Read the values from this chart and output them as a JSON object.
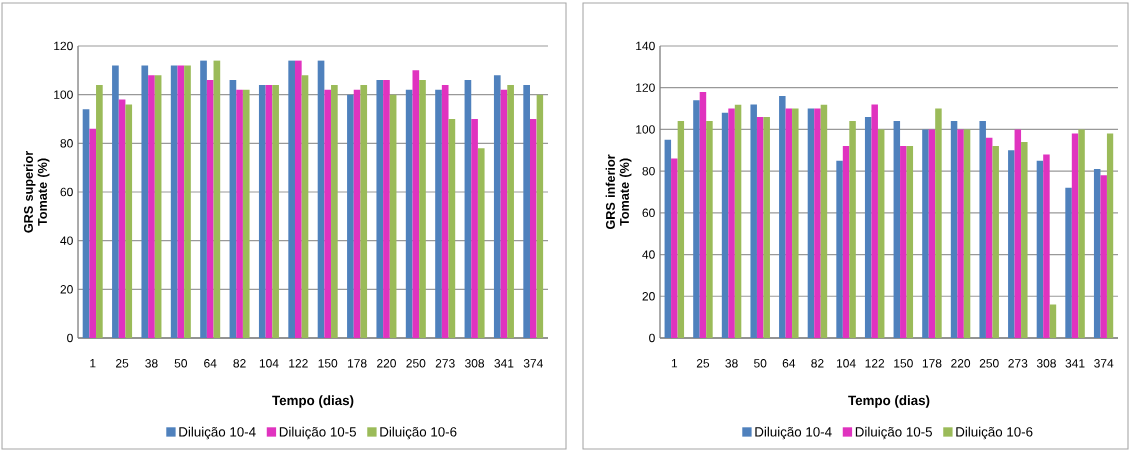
{
  "chart_data": [
    {
      "type": "bar",
      "xlabel": "Tempo (dias)",
      "ylabel": "GRS superior Tomate (%)",
      "categories": [
        "1",
        "25",
        "38",
        "50",
        "64",
        "82",
        "104",
        "122",
        "150",
        "178",
        "220",
        "250",
        "273",
        "308",
        "341",
        "374"
      ],
      "ylim": [
        0,
        120
      ],
      "yticks": [
        0,
        20,
        40,
        60,
        80,
        100,
        120
      ],
      "grid": "y",
      "legend": "bottom",
      "series": [
        {
          "name": "Diluição 10-4",
          "color": "#4f81bd",
          "values": [
            94,
            112,
            112,
            112,
            114,
            106,
            104,
            114,
            114,
            100,
            106,
            102,
            102,
            106,
            108,
            104
          ]
        },
        {
          "name": "Diluição 10-5",
          "color": "#e033bf",
          "values": [
            86,
            98,
            108,
            112,
            106,
            102,
            104,
            114,
            102,
            102,
            106,
            110,
            104,
            90,
            102,
            90
          ]
        },
        {
          "name": "Diluição 10-6",
          "color": "#9bbb59",
          "values": [
            104,
            96,
            108,
            112,
            114,
            102,
            104,
            108,
            104,
            104,
            100,
            106,
            90,
            78,
            104,
            100
          ]
        }
      ]
    },
    {
      "type": "bar",
      "xlabel": "Tempo (dias)",
      "ylabel": "GRS inferior Tomate (%)",
      "categories": [
        "1",
        "25",
        "38",
        "50",
        "64",
        "82",
        "104",
        "122",
        "150",
        "178",
        "220",
        "250",
        "273",
        "308",
        "341",
        "374"
      ],
      "ylim": [
        0,
        140
      ],
      "yticks": [
        0,
        20,
        40,
        60,
        80,
        100,
        120,
        140
      ],
      "grid": "y",
      "legend": "bottom",
      "series": [
        {
          "name": "Diluição 10-4",
          "color": "#4f81bd",
          "values": [
            95,
            114,
            108,
            112,
            116,
            110,
            85,
            106,
            104,
            100,
            104,
            104,
            90,
            85,
            72,
            81
          ]
        },
        {
          "name": "Diluição 10-5",
          "color": "#e033bf",
          "values": [
            86,
            118,
            110,
            106,
            110,
            110,
            92,
            112,
            92,
            100,
            100,
            96,
            100,
            88,
            98,
            78
          ]
        },
        {
          "name": "Diluição 10-6",
          "color": "#9bbb59",
          "values": [
            104,
            104,
            112,
            106,
            110,
            112,
            104,
            100,
            92,
            110,
            100,
            92,
            94,
            16,
            100,
            98
          ]
        }
      ]
    }
  ]
}
